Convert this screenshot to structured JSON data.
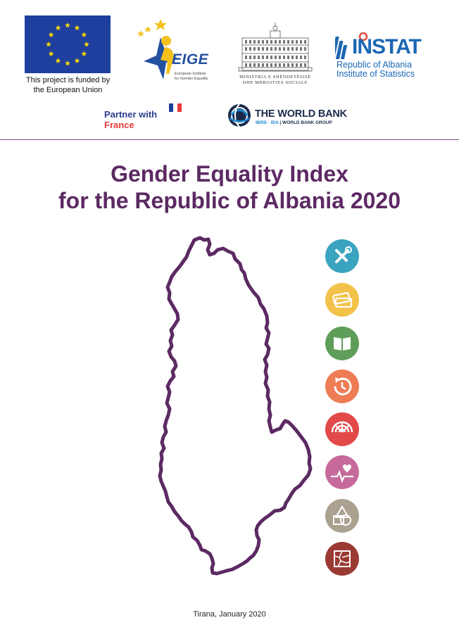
{
  "logos": {
    "eu_caption_line1": "This project is funded by",
    "eu_caption_line2": "the European Union",
    "eige_acronym": "EIGE",
    "eige_line1": "European Institute",
    "eige_line2": "for Gender Equality",
    "ministry_line1": "MINISTRIA E SHËNDETËSISË",
    "ministry_line2": "DHE MBROJTJES SOCIALE",
    "instat_name": "INSTAT",
    "instat_line1": "Republic of Albania",
    "instat_line2": "Institute of Statistics",
    "france_line1": "Partner with",
    "france_line2": "France",
    "worldbank_name": "THE WORLD BANK",
    "worldbank_sub_blue": "IBRD · IDA",
    "worldbank_sub_dark": " | WORLD BANK GROUP"
  },
  "title": {
    "line1": "Gender Equality Index",
    "line2": "for the Republic of Albania 2020"
  },
  "domain_icons": [
    {
      "name": "work-icon",
      "color": "#3aa4c0"
    },
    {
      "name": "money-icon",
      "color": "#f2c24a"
    },
    {
      "name": "knowledge-icon",
      "color": "#5f9e59"
    },
    {
      "name": "time-icon",
      "color": "#ee7c54"
    },
    {
      "name": "power-icon",
      "color": "#e14a48"
    },
    {
      "name": "health-icon",
      "color": "#c66a9b"
    },
    {
      "name": "intersecting-inequalities-icon",
      "color": "#aaa191"
    },
    {
      "name": "violence-icon",
      "color": "#9a3a33"
    }
  ],
  "colors": {
    "title": "#5c2a63",
    "map_outline": "#5c2a63",
    "eu_blue": "#1f3f9e",
    "eu_star": "#ffdd00"
  },
  "footer": "Tirana, January 2020"
}
